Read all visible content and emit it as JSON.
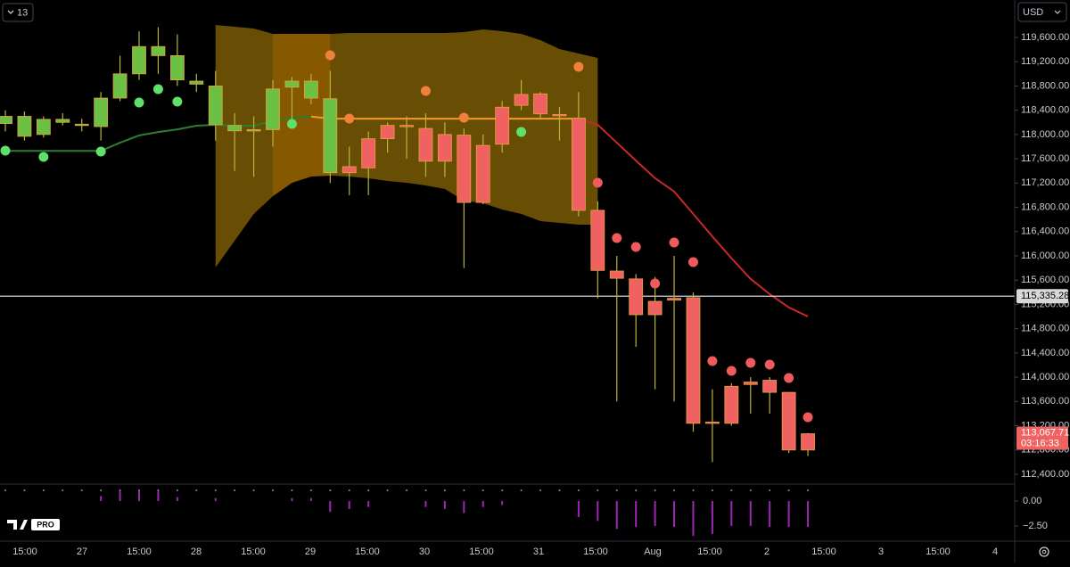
{
  "chart_data": {
    "type": "candlestick",
    "interval": "13",
    "currency": "USD",
    "logo": "PRO",
    "ylim": [
      112238,
      120217
    ],
    "yticks": [
      {
        "value": 112400,
        "label": "112,400.00"
      },
      {
        "value": 112800,
        "label": "112,800.00"
      },
      {
        "value": 113200,
        "label": "113,200.00"
      },
      {
        "value": 113600,
        "label": "113,600.00"
      },
      {
        "value": 114000,
        "label": "114,000.00"
      },
      {
        "value": 114400,
        "label": "114,400.00"
      },
      {
        "value": 114800,
        "label": "114,800.00"
      },
      {
        "value": 115200,
        "label": "115,200.00"
      },
      {
        "value": 115600,
        "label": "115,600.00"
      },
      {
        "value": 116000,
        "label": "116,000.00"
      },
      {
        "value": 116400,
        "label": "116,400.00"
      },
      {
        "value": 116800,
        "label": "116,800.00"
      },
      {
        "value": 117200,
        "label": "117,200.00"
      },
      {
        "value": 117600,
        "label": "117,600.00"
      },
      {
        "value": 118000,
        "label": "118,000.00"
      },
      {
        "value": 118400,
        "label": "118,400.00"
      },
      {
        "value": 118800,
        "label": "118,800.00"
      },
      {
        "value": 119200,
        "label": "119,200.00"
      },
      {
        "value": 119600,
        "label": "119,600.00"
      }
    ],
    "x_labels": [
      "15:00",
      "27",
      "15:00",
      "28",
      "15:00",
      "29",
      "15:00",
      "30",
      "15:00",
      "31",
      "15:00",
      "Aug",
      "15:00",
      "2",
      "15:00",
      "3",
      "15:00",
      "4"
    ],
    "open": [
      118180,
      117970,
      118000,
      118200,
      118150,
      118130,
      118600,
      119000,
      119300,
      118900,
      118830,
      118160,
      118060,
      118070,
      118080,
      118780,
      118600,
      117370,
      117470,
      117930,
      118150,
      118150,
      118100,
      118000,
      117990,
      117820,
      118450,
      118660,
      118670,
      118330,
      118270,
      116750,
      115750,
      115620,
      115250,
      115270,
      115310,
      113240,
      113850,
      113920,
      113950,
      113750,
      112800
    ],
    "high": [
      118400,
      118380,
      118300,
      118350,
      118260,
      118700,
      119300,
      119700,
      119770,
      119650,
      119000,
      119050,
      118350,
      118300,
      118900,
      118950,
      119000,
      119050,
      117800,
      118050,
      118200,
      118300,
      118350,
      118200,
      118100,
      118000,
      118550,
      118900,
      118700,
      118450,
      118700,
      116900,
      116000,
      115700,
      115650,
      116000,
      115400,
      113800,
      113900,
      114000,
      114000,
      113750,
      113080
    ],
    "low": [
      118050,
      117900,
      117950,
      118150,
      118050,
      117900,
      118550,
      118900,
      119000,
      118800,
      118700,
      117900,
      117400,
      117300,
      117800,
      118100,
      118500,
      117200,
      117000,
      117000,
      117700,
      117600,
      117300,
      117300,
      115800,
      116850,
      117700,
      118400,
      118250,
      117900,
      116650,
      115300,
      113600,
      114500,
      113800,
      113600,
      113100,
      112600,
      113200,
      113400,
      113400,
      112750,
      112700
    ],
    "close": [
      118300,
      118300,
      118250,
      118250,
      118170,
      118600,
      119000,
      119450,
      119450,
      119300,
      118880,
      118800,
      118150,
      118080,
      118750,
      118880,
      118880,
      118590,
      117370,
      117450,
      117930,
      118130,
      117560,
      117560,
      116880,
      116880,
      117840,
      118480,
      118340,
      118320,
      116750,
      115760,
      115630,
      115030,
      115030,
      115300,
      113240,
      113260,
      113240,
      113880,
      113750,
      112800,
      113067.71
    ],
    "colors": [
      "#6cc043",
      "#6cc043",
      "#6cc043",
      "#6cc043",
      "#6cc043",
      "#6cc043",
      "#6cc043",
      "#6cc043",
      "#6cc043",
      "#6cc043",
      "#6cc043",
      "#6cc043",
      "#6cc043",
      "#6cc043",
      "#6cc043",
      "#6cc043",
      "#6cc043",
      "#6cc043",
      "#f06262",
      "#f06262",
      "#f06262",
      "#f06262",
      "#f06262",
      "#f06262",
      "#f06262",
      "#f06262",
      "#f06262",
      "#f06262",
      "#f06262",
      "#f06262",
      "#f06262",
      "#f06262",
      "#f06262",
      "#f06262",
      "#f06262",
      "#f06262",
      "#f06262",
      "#f06262",
      "#f06262",
      "#f06262",
      "#f06262",
      "#f06262",
      "#f06262"
    ],
    "wick_color": "#b8b43a",
    "band": {
      "start": 11,
      "highlight": [
        14,
        17
      ],
      "color": "#7a5a06",
      "highlight_color": "#8a5a00",
      "upper": [
        119806,
        119777,
        119747,
        119659,
        119659,
        119659,
        119659,
        119673,
        119673,
        119673,
        119673,
        119673,
        119673,
        119688,
        119732,
        119703,
        119659,
        119556,
        119409,
        119336,
        119262
      ],
      "lower": [
        115809,
        116250,
        116691,
        116985,
        117205,
        117308,
        117322,
        117308,
        117278,
        117234,
        117205,
        117161,
        117102,
        116911,
        116867,
        116764,
        116691,
        116573,
        116544,
        116514,
        116514
      ]
    },
    "lines": [
      {
        "color": "#2e7d32",
        "values": [
          117730,
          117730,
          117730,
          117730,
          117730,
          117730,
          117865,
          117985,
          118040,
          118085,
          118145,
          118160,
          118145,
          118145,
          118220,
          118280,
          118295,
          null,
          null,
          null,
          null,
          null,
          null,
          null,
          null,
          null,
          null,
          null,
          null,
          null,
          null,
          null,
          null,
          null,
          null,
          null,
          null,
          null,
          null,
          null,
          null,
          null,
          null
        ]
      },
      {
        "color": "#f59a23",
        "values": [
          null,
          null,
          null,
          null,
          null,
          null,
          null,
          null,
          null,
          null,
          null,
          null,
          null,
          null,
          null,
          null,
          118295,
          118260,
          118260,
          118260,
          118260,
          118260,
          118260,
          118260,
          118260,
          118260,
          118260,
          118260,
          118260,
          118260,
          118260,
          null,
          null,
          null,
          null,
          null,
          null,
          null,
          null,
          null,
          null,
          null,
          null
        ]
      },
      {
        "color": "#c62828",
        "values": [
          null,
          null,
          null,
          null,
          null,
          null,
          null,
          null,
          null,
          null,
          null,
          null,
          null,
          null,
          null,
          null,
          null,
          null,
          null,
          null,
          null,
          null,
          null,
          null,
          null,
          null,
          null,
          null,
          null,
          null,
          118260,
          118160,
          117865,
          117570,
          117280,
          117060,
          116690,
          116320,
          115960,
          115620,
          115370,
          115150,
          115000
        ]
      }
    ],
    "dots": [
      {
        "color": "#5fe06a",
        "values": [
          117734,
          null,
          117631,
          null,
          null,
          117719,
          null,
          118527,
          118748,
          118542,
          null,
          null,
          null,
          null,
          null,
          118175,
          null,
          null,
          null,
          null,
          null,
          null,
          null,
          null,
          null,
          null,
          null,
          118042,
          null,
          null,
          null,
          null,
          null,
          null,
          null,
          null,
          null,
          null,
          null,
          null,
          null,
          null,
          null
        ]
      },
      {
        "color": "#f0803c",
        "values": [
          null,
          null,
          null,
          null,
          null,
          null,
          null,
          null,
          null,
          null,
          null,
          null,
          null,
          null,
          null,
          null,
          null,
          119306,
          118263,
          null,
          null,
          null,
          118718,
          null,
          118277,
          null,
          null,
          null,
          null,
          null,
          119115,
          null,
          null,
          null,
          null,
          null,
          null,
          null,
          null,
          null,
          null,
          null,
          null
        ]
      },
      {
        "color": "#f05a5a",
        "values": [
          null,
          null,
          null,
          null,
          null,
          null,
          null,
          null,
          null,
          null,
          null,
          null,
          null,
          null,
          null,
          null,
          null,
          null,
          null,
          null,
          null,
          null,
          null,
          null,
          null,
          null,
          null,
          null,
          null,
          null,
          null,
          117205,
          116294,
          116147,
          115544,
          116220,
          115897,
          114266,
          114104,
          114237,
          114207,
          113987,
          113340
        ]
      }
    ],
    "price_line": {
      "value": 115335.28,
      "label": "115,335.28"
    },
    "last_price": {
      "label": "113,067.71",
      "countdown": "03:16:33"
    },
    "oscillator": {
      "color": "#9c27b0",
      "ylim": [
        -4.02,
        1.7
      ],
      "yticks": [
        {
          "value": 0,
          "label": "0.00"
        },
        {
          "value": -2.5,
          "label": "−2.50"
        }
      ],
      "values": [
        0,
        0,
        0,
        0,
        0,
        0.5,
        1.0,
        1.0,
        1.0,
        0.4,
        0,
        0.3,
        0,
        0,
        0,
        0.3,
        0.3,
        -1.1,
        -0.8,
        -0.6,
        0,
        0,
        -0.6,
        -0.8,
        -1.2,
        -0.6,
        -0.4,
        0,
        0,
        0,
        -1.6,
        -2.0,
        -2.8,
        -2.6,
        -2.5,
        -2.6,
        -3.5,
        -3.3,
        -2.5,
        -2.5,
        -2.6,
        -2.6,
        -2.6
      ]
    }
  }
}
